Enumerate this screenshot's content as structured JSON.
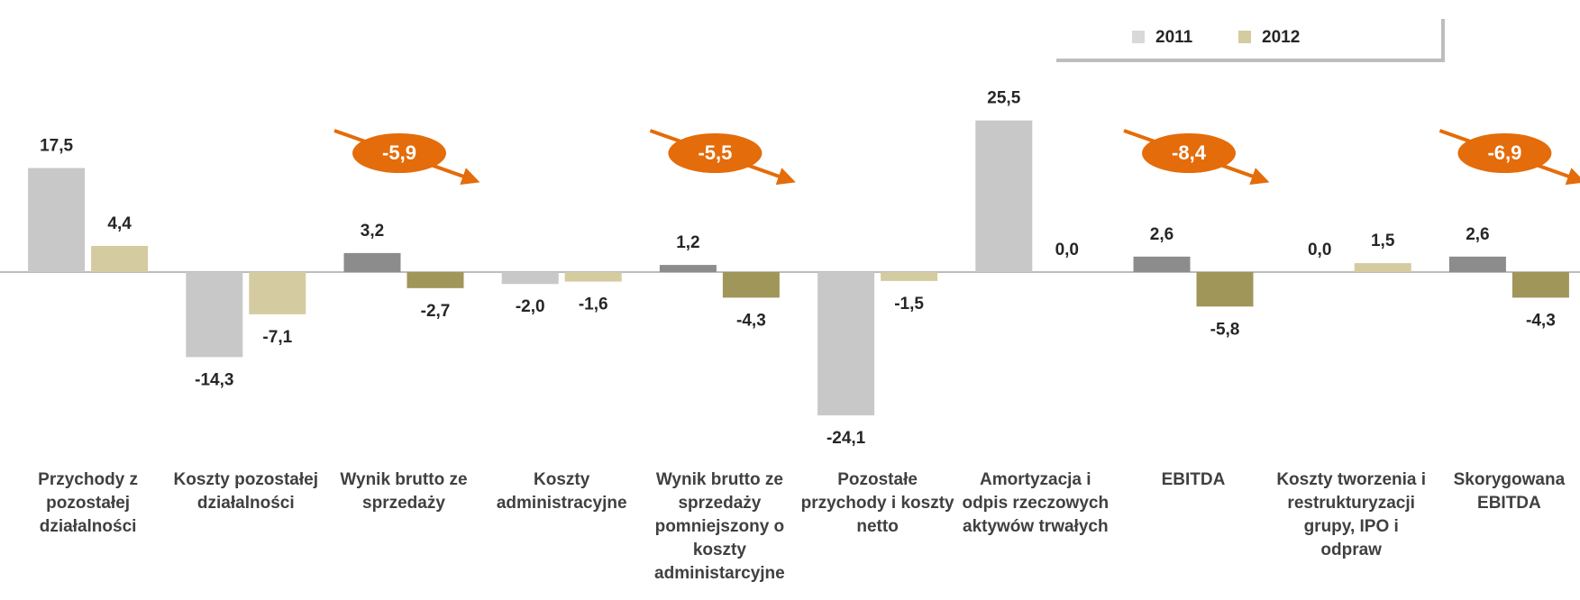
{
  "chart_data": {
    "type": "bar",
    "categories": [
      "Przychody z pozostałej działalności",
      "Koszty pozostałej działalności",
      "Wynik brutto ze sprzedaży",
      "Koszty administracyjne",
      "Wynik brutto ze sprzedaży pomniejszony o koszty administarcyjne",
      "Pozostałe przychody i koszty netto",
      "Amortyzacja i odpis rzeczowych aktywów trwałych",
      "EBITDA",
      "Koszty tworzenia i restrukturyzacji grupy, IPO  i odpraw",
      "Skorygowana EBITDA"
    ],
    "series": [
      {
        "name": "2011",
        "color": "#d9d9d9",
        "colors": [
          "#c8c8c8",
          "#c8c8c8",
          "#8c8c8c",
          "#c8c8c8",
          "#8c8c8c",
          "#c8c8c8",
          "#c8c8c8",
          "#8c8c8c",
          "#c8c8c8",
          "#8c8c8c"
        ],
        "values": [
          17.5,
          -14.3,
          3.2,
          -2.0,
          1.2,
          -24.1,
          25.5,
          2.6,
          0.0,
          2.6
        ],
        "value_labels": [
          "17,5",
          "-14,3",
          "3,2",
          "-2,0",
          "1,2",
          "-24,1",
          "25,5",
          "2,6",
          "0,0",
          "2,6"
        ]
      },
      {
        "name": "2012",
        "color": "#d4cba0",
        "colors": [
          "#d4cba0",
          "#d4cba0",
          "#a0965a",
          "#d4cba0",
          "#a0965a",
          "#d4cba0",
          "#d4cba0",
          "#a0965a",
          "#d4cba0",
          "#a0965a"
        ],
        "values": [
          4.4,
          -7.1,
          -2.7,
          -1.6,
          -4.3,
          -1.5,
          0.0,
          -5.8,
          1.5,
          -4.3
        ],
        "value_labels": [
          "4,4",
          "-7,1",
          "-2,7",
          "-1,6",
          "-4,3",
          "-1,5",
          "0,0",
          "-5,8",
          "1,5",
          "-4,3"
        ]
      }
    ],
    "annotations": [
      {
        "category": "Wynik brutto ze sprzedaży",
        "value": -5.9,
        "label": "-5,9"
      },
      {
        "category": "Wynik brutto ze sprzedaży pomniejszony o koszty administarcyjne",
        "value": -5.5,
        "label": "-5,5"
      },
      {
        "category": "EBITDA",
        "value": -8.4,
        "label": "-8,4"
      },
      {
        "category": "Skorygowana EBITDA",
        "value": -6.9,
        "label": "-6,9"
      }
    ],
    "annotation_color": "#e46c0a",
    "ylim": [
      -30,
      30
    ],
    "legend": "top-right"
  }
}
